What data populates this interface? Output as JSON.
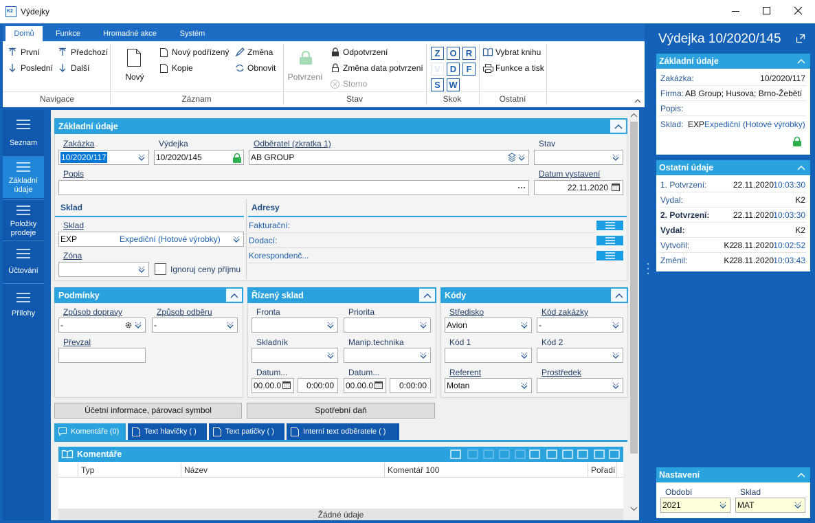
{
  "window": {
    "title": "Výdejky",
    "logo": "K2"
  },
  "ribbon": {
    "tabs": [
      "Domů",
      "Funkce",
      "Hromadné akce",
      "Systém"
    ],
    "groups": [
      {
        "label": "Navigace",
        "items": [
          "První",
          "Předchozí",
          "Poslední",
          "Další"
        ]
      },
      {
        "label": "Záznam",
        "items": [
          "Nový",
          "Nový podřízený",
          "Změna",
          "Kopie",
          "Obnovit"
        ]
      },
      {
        "label": "Stav",
        "items": [
          "Potvrzení",
          "Odpotvrzení",
          "Změna data potvrzení",
          "Storno"
        ]
      },
      {
        "label": "Skok",
        "items": [
          "Z",
          "O",
          "R",
          "V",
          "D",
          "F",
          "S",
          "W"
        ]
      },
      {
        "label": "Ostatní",
        "items": [
          "Vybrat knihu",
          "Funkce a tisk"
        ]
      }
    ]
  },
  "nav": [
    "Seznam",
    "Základní údaje",
    "Položky prodeje",
    "Účtování",
    "Přílohy"
  ],
  "basic": {
    "title": "Základní údaje",
    "fields": [
      {
        "label": "Zakázka",
        "value": "10/2020/117"
      },
      {
        "label": "Výdejka",
        "value": "10/2020/145"
      },
      {
        "label": "Odběratel (zkratka 1)",
        "value": "AB GROUP"
      },
      {
        "label": "Stav"
      },
      {
        "label": "Popis"
      },
      {
        "label": "Datum vystavení",
        "value": "22.11.2020"
      }
    ]
  },
  "sklad": {
    "title": "Sklad",
    "fields": [
      {
        "label": "Sklad",
        "code": "EXP",
        "name": "Expediční (Hotové výrobky)"
      },
      {
        "label": "Zóna"
      }
    ],
    "checkbox": "Ignoruj ceny příjmu"
  },
  "adresy": {
    "title": "Adresy",
    "items": [
      "Fakturační:",
      "Dodací:",
      "Korespondenč..."
    ]
  },
  "podminky": {
    "title": "Podmínky",
    "fields": [
      {
        "label": "Způsob dopravy",
        "value": "-"
      },
      {
        "label": "Způsob odběru",
        "value": "-"
      },
      {
        "label": "Převzal"
      }
    ]
  },
  "rizeny": {
    "title": "Řízený sklad",
    "fields": [
      {
        "label": "Fronta"
      },
      {
        "label": "Priorita"
      },
      {
        "label": "Skladník"
      },
      {
        "label": "Manip.technika"
      },
      {
        "label": "Datum...",
        "date": "00.00.0",
        "time": "0:00:00"
      },
      {
        "label": "Datum...",
        "date": "00.00.0",
        "time": "0:00:00"
      }
    ]
  },
  "kody": {
    "title": "Kódy",
    "fields": [
      {
        "label": "Středisko",
        "value": "Avion"
      },
      {
        "label": "Kód zakázky",
        "value": "-"
      },
      {
        "label": "Kód 1"
      },
      {
        "label": "Kód 2"
      },
      {
        "label": "Referent",
        "value": "Motan"
      },
      {
        "label": "Prostředek"
      }
    ]
  },
  "buttons": [
    "Účetní informace, párovací symbol",
    "Spotřební daň"
  ],
  "tabs": [
    "Komentáře (0)",
    "Text hlavičky ( )",
    "Text patičky ( )",
    "Interní text odběratele ( )"
  ],
  "comments": {
    "title": "Komentáře",
    "columns": [
      "Typ",
      "Název",
      "Komentář 100",
      "Pořadí"
    ],
    "empty": "Žádné údaje"
  },
  "panel": {
    "title": "Výdejka 10/2020/145",
    "basic": {
      "title": "Základní údaje",
      "rows": [
        {
          "label": "Zakázka:",
          "value": "10/2020/117"
        },
        {
          "label": "Firma:",
          "value": "AB Group; Husova; Brno-Žebětí"
        },
        {
          "label": "Popis:"
        },
        {
          "label": "Sklad:",
          "value": "EXP",
          "extra": "Expediční (Hotové výrobky)"
        }
      ]
    },
    "other": {
      "title": "Ostatní údaje",
      "rows": [
        {
          "label": "1. Potvrzení:",
          "date": "22.11.2020",
          "time": "10:03:30"
        },
        {
          "label": "Vydal:",
          "user": "K2"
        },
        {
          "label": "2. Potvrzení:",
          "date": "22.11.2020",
          "time": "10:03:30"
        },
        {
          "label": "Vydal:",
          "user": "K2"
        },
        {
          "label": "Vytvořil:",
          "user": "K2",
          "date": "28.11.2020",
          "time": "10:02:52"
        },
        {
          "label": "Změnil:",
          "user": "K2",
          "date": "28.11.2020",
          "time": "10:03:43"
        }
      ]
    },
    "settings": {
      "title": "Nastavení",
      "fields": [
        {
          "label": "Období",
          "value": "2021"
        },
        {
          "label": "Sklad",
          "value": "MAT"
        }
      ]
    }
  }
}
